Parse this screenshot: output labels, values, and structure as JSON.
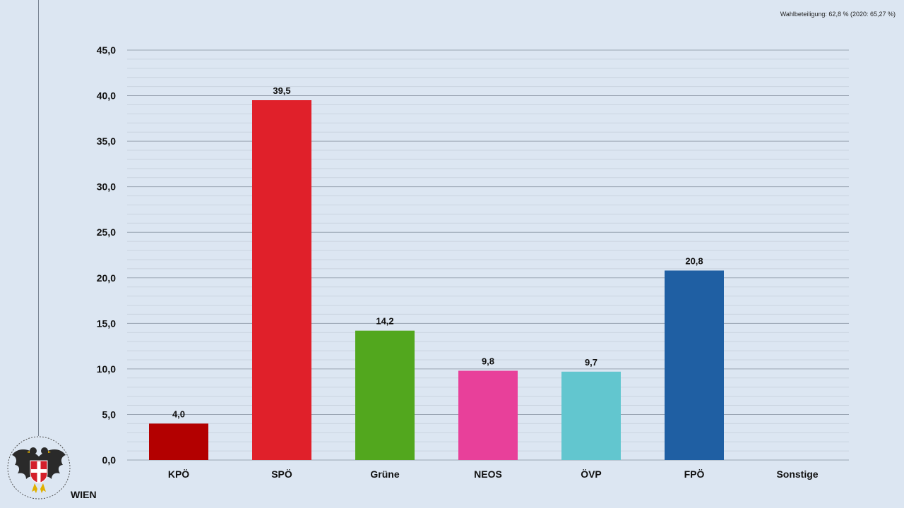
{
  "header": {
    "turnout_text": "Wahlbeteiligung: 62,8 % (2020: 65,27 %)"
  },
  "branding": {
    "city_name": "WIEN",
    "logo_icon": "vienna-coat-of-arms-eagle-icon"
  },
  "chart_data": {
    "type": "bar",
    "categories": [
      "KPÖ",
      "SPÖ",
      "Grüne",
      "NEOS",
      "ÖVP",
      "FPÖ",
      "Sonstige"
    ],
    "values": [
      4.0,
      39.5,
      14.2,
      9.8,
      9.7,
      20.8,
      null
    ],
    "value_labels": [
      "4,0",
      "39,5",
      "14,2",
      "9,8",
      "9,7",
      "20,8",
      ""
    ],
    "colors": [
      "#b30000",
      "#e0202a",
      "#52a71e",
      "#e8409a",
      "#62c6cf",
      "#1f5fa3",
      "#888888"
    ],
    "ylim": [
      0,
      45
    ],
    "yticks": [
      0,
      5,
      10,
      15,
      20,
      25,
      30,
      35,
      40,
      45
    ],
    "ytick_labels": [
      "0,0",
      "5,0",
      "10,0",
      "15,0",
      "20,0",
      "25,0",
      "30,0",
      "35,0",
      "40,0",
      "45,0"
    ],
    "grid": true,
    "title": "",
    "xlabel": "",
    "ylabel": ""
  }
}
